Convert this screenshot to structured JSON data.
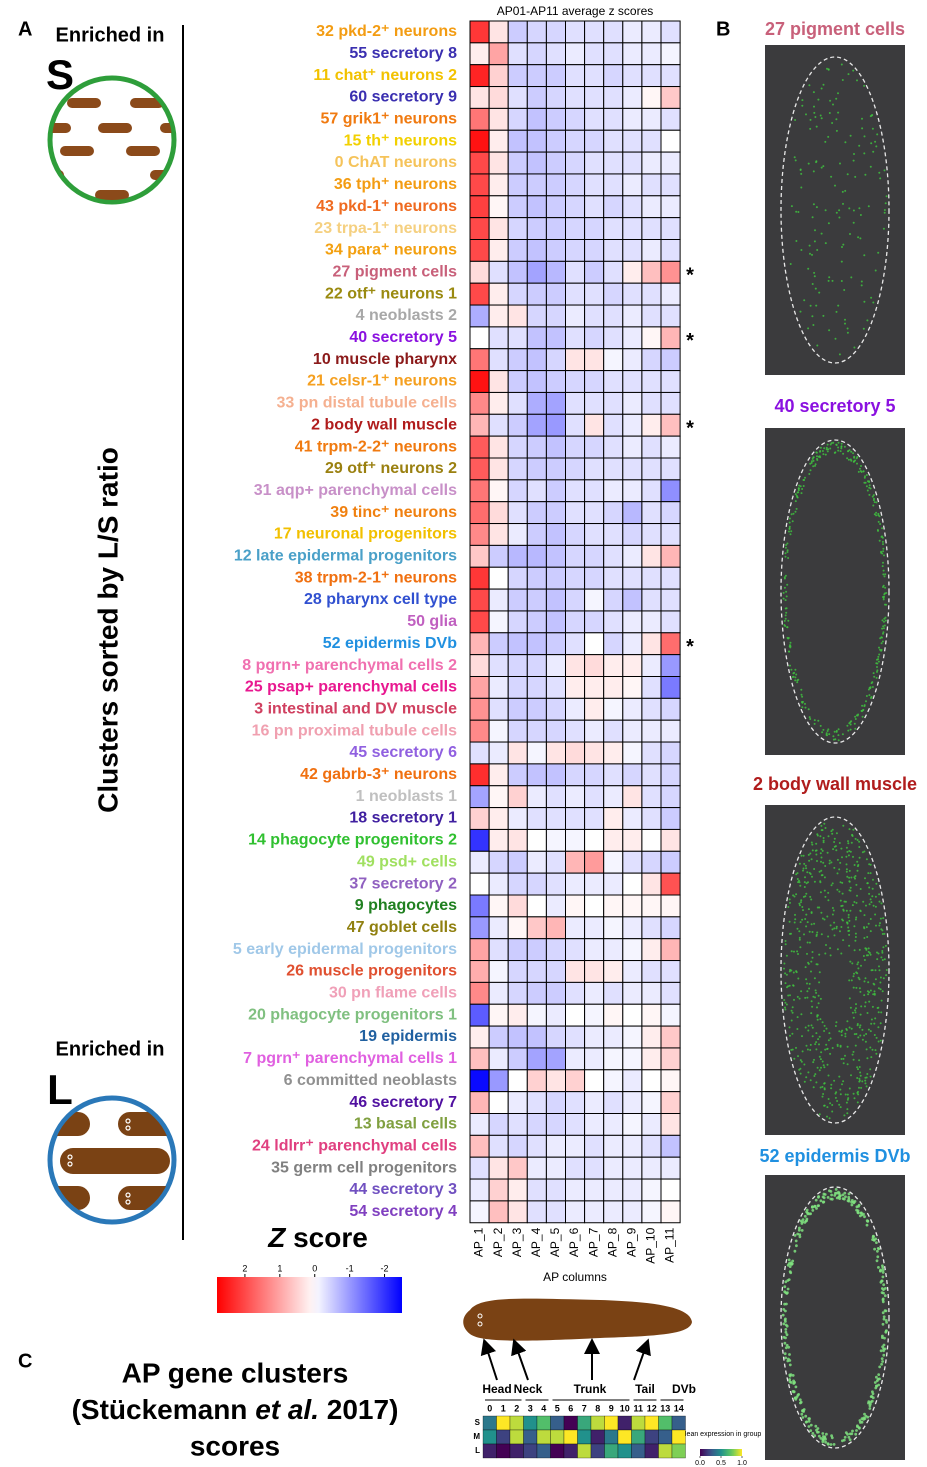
{
  "panel_a": {
    "letter": "A",
    "enriched_label": "Enriched in",
    "s_label": "S",
    "l_label": "L",
    "axis_label": "Clusters sorted by L/S ratio"
  },
  "chart_data": [
    {
      "type": "heatmap",
      "title": "AP01-AP11 average z scores",
      "x_label": "AP columns",
      "columns": [
        "AP_1",
        "AP_2",
        "AP_3",
        "AP_4",
        "AP_5",
        "AP_6",
        "AP_7",
        "AP_8",
        "AP_9",
        "AP_10",
        "AP_11"
      ],
      "categories": [
        "32 pkd-2⁺ neurons",
        "55 secretory 8",
        "11 chat⁺ neurons 2",
        "60 secretory 9",
        "57 grik1⁺ neurons",
        "15 th⁺ neurons",
        "0 ChAT neurons",
        "36 tph⁺ neurons",
        "43 pkd-1⁺ neurons",
        "23 trpa-1⁺ neurons",
        "34 para⁺ neurons",
        "27 pigment cells",
        "22 otf⁺ neurons 1",
        "4 neoblasts 2",
        "40 secretory 5",
        "10 muscle pharynx",
        "21 celsr-1⁺ neurons",
        "33 pn distal tubule cells",
        "2 body wall muscle",
        "41 trpm-2-2⁺ neurons",
        "29 otf⁺ neurons 2",
        "31 aqp+ parenchymal cells",
        "39 tinc⁺ neurons",
        "17 neuronal progenitors",
        "12 late epidermal progenitors",
        "38 trpm-2-1⁺ neurons",
        "28 pharynx cell type",
        "50 glia",
        "52 epidermis DVb",
        "8 pgrn+ parenchymal cells 2",
        "25 psap+ parenchymal cells",
        "3 intestinal and DV muscle",
        "16 pn proximal tubule cells",
        "45 secretory 6",
        "42 gabrb-3⁺ neurons",
        "1 neoblasts 1",
        "18 secretory 1",
        "14 phagocyte progenitors 2",
        "49 psd+ cells",
        "37 secretory 2",
        "9 phagocytes",
        "47 goblet cells",
        "5 early epidermal progenitors",
        "26 muscle progenitors",
        "30 pn flame cells",
        "20 phagocyte progenitors 1",
        "19 epidermis",
        "7 pgrn⁺ parenchymal cells 1",
        "6 committed neoblasts",
        "46 secretory 7",
        "13 basal cells",
        "24 ldlrr⁺ parenchymal cells",
        "35 germ cell progenitors",
        "44 secretory 3",
        "54 secretory 4"
      ],
      "label_colors": [
        "#f39c12",
        "#3a2fb0",
        "#f2c200",
        "#3a2fb0",
        "#f07a10",
        "#f2d000",
        "#f5c35a",
        "#f39c12",
        "#ef6a20",
        "#f5d080",
        "#f3a010",
        "#c8607a",
        "#9a8a10",
        "#a8a8a8",
        "#8a10e0",
        "#8b1a1a",
        "#f5a020",
        "#f5b090",
        "#b01c1c",
        "#f07a10",
        "#9a8010",
        "#c890c8",
        "#f08010",
        "#f2c000",
        "#4aa0c8",
        "#f07010",
        "#3050d0",
        "#c060c0",
        "#2090e0",
        "#f070b0",
        "#e81890",
        "#d04060",
        "#f0a0b0",
        "#9060e0",
        "#f07010",
        "#c0c0c0",
        "#4020a0",
        "#30c030",
        "#a0e060",
        "#9060c0",
        "#208020",
        "#908010",
        "#a0c8e8",
        "#e05030",
        "#f0a0b8",
        "#80c080",
        "#2060a0",
        "#e060e0",
        "#909090",
        "#5010a0",
        "#80a040",
        "#e04080",
        "#808080",
        "#7050c0",
        "#8040c0"
      ],
      "row_notes": [
        null,
        null,
        null,
        null,
        null,
        null,
        null,
        null,
        null,
        null,
        null,
        "*",
        null,
        null,
        "*",
        null,
        null,
        null,
        "*",
        null,
        null,
        null,
        null,
        null,
        null,
        null,
        null,
        null,
        "*",
        null,
        null,
        null,
        null,
        null,
        null,
        null,
        null,
        null,
        null,
        null,
        null,
        null,
        null,
        null,
        null,
        null,
        null,
        null,
        null,
        null,
        null,
        null,
        null,
        null,
        null
      ],
      "values": [
        [
          2.2,
          0.3,
          -0.5,
          -0.4,
          -0.4,
          -0.3,
          -0.3,
          -0.3,
          -0.2,
          -0.2,
          -0.3
        ],
        [
          0.2,
          1.0,
          -0.3,
          -0.4,
          -0.3,
          -0.2,
          -0.3,
          -0.3,
          -0.2,
          -0.2,
          -0.1
        ],
        [
          2.4,
          0.5,
          -0.5,
          -0.5,
          -0.5,
          -0.3,
          -0.3,
          -0.4,
          -0.3,
          -0.3,
          -0.3
        ],
        [
          0.3,
          0.4,
          -0.3,
          -0.5,
          -0.4,
          -0.3,
          -0.3,
          -0.3,
          -0.2,
          0.1,
          0.6
        ],
        [
          1.5,
          0.3,
          -0.4,
          -0.6,
          -0.5,
          -0.4,
          -0.3,
          -0.3,
          -0.2,
          -0.2,
          -0.3
        ],
        [
          2.6,
          0.2,
          -0.6,
          -0.6,
          -0.5,
          -0.4,
          -0.4,
          -0.3,
          -0.3,
          -0.3,
          0.0
        ],
        [
          2.0,
          0.3,
          -0.5,
          -0.6,
          -0.5,
          -0.4,
          -0.3,
          -0.3,
          -0.3,
          -0.2,
          -0.2
        ],
        [
          2.0,
          0.2,
          -0.5,
          -0.5,
          -0.5,
          -0.4,
          -0.3,
          -0.3,
          -0.2,
          -0.3,
          -0.3
        ],
        [
          2.1,
          0.1,
          -0.5,
          -0.6,
          -0.5,
          -0.4,
          -0.3,
          -0.4,
          -0.3,
          -0.2,
          -0.2
        ],
        [
          2.0,
          0.3,
          -0.4,
          -0.5,
          -0.5,
          -0.4,
          -0.4,
          -0.3,
          -0.3,
          -0.3,
          -0.3
        ],
        [
          2.0,
          0.2,
          -0.5,
          -0.6,
          -0.5,
          -0.4,
          -0.4,
          -0.3,
          -0.3,
          -0.2,
          -0.3
        ],
        [
          0.4,
          -0.3,
          -0.6,
          -0.9,
          -0.7,
          -0.3,
          -0.5,
          -0.3,
          0.2,
          0.7,
          1.2
        ],
        [
          2.0,
          0.2,
          -0.4,
          -0.5,
          -0.5,
          -0.3,
          -0.3,
          -0.4,
          -0.3,
          -0.3,
          -0.2
        ],
        [
          -0.8,
          0.2,
          0.3,
          -0.4,
          -0.4,
          -0.2,
          -0.3,
          -0.3,
          -0.2,
          -0.3,
          -0.3
        ],
        [
          0.0,
          -0.3,
          -0.3,
          -0.6,
          -0.6,
          -0.3,
          -0.4,
          -0.3,
          -0.2,
          0.1,
          0.8
        ],
        [
          1.5,
          -0.3,
          -0.5,
          -0.6,
          -0.4,
          0.3,
          0.3,
          -0.1,
          -0.2,
          -0.4,
          -0.5
        ],
        [
          2.6,
          0.3,
          -0.5,
          -0.6,
          -0.5,
          -0.4,
          -0.4,
          -0.3,
          -0.3,
          -0.3,
          -0.3
        ],
        [
          1.3,
          0.2,
          -0.3,
          -0.8,
          -0.9,
          -0.3,
          -0.3,
          -0.3,
          -0.2,
          -0.3,
          -0.3
        ],
        [
          0.8,
          -0.3,
          -0.5,
          -0.9,
          -1.0,
          -0.3,
          0.3,
          -0.3,
          -0.2,
          0.2,
          0.7
        ],
        [
          1.8,
          0.3,
          -0.4,
          -0.5,
          -0.6,
          -0.4,
          -0.4,
          -0.3,
          -0.2,
          -0.3,
          -0.2
        ],
        [
          1.8,
          0.3,
          -0.4,
          -0.5,
          -0.5,
          -0.4,
          -0.3,
          -0.3,
          -0.3,
          -0.3,
          -0.3
        ],
        [
          1.5,
          0.1,
          -0.4,
          -0.3,
          -0.5,
          -0.3,
          -0.3,
          -0.2,
          -0.2,
          -0.3,
          -1.1
        ],
        [
          1.6,
          0.4,
          -0.3,
          -0.5,
          -0.5,
          -0.3,
          -0.3,
          -0.4,
          -0.7,
          -0.3,
          -0.4
        ],
        [
          1.3,
          0.3,
          -0.2,
          -0.5,
          -0.6,
          -0.4,
          -0.3,
          -0.3,
          -0.4,
          -0.3,
          -0.3
        ],
        [
          0.6,
          -0.5,
          -0.7,
          -0.7,
          -0.6,
          -0.4,
          -0.4,
          -0.3,
          -0.2,
          0.3,
          0.8
        ],
        [
          2.2,
          0.0,
          -0.4,
          -0.5,
          -0.5,
          -0.4,
          -0.4,
          -0.3,
          -0.3,
          -0.3,
          -0.3
        ],
        [
          2.0,
          -0.2,
          -0.5,
          -0.5,
          -0.6,
          -0.4,
          -0.1,
          -0.4,
          -0.6,
          -0.3,
          -0.3
        ],
        [
          2.0,
          -0.1,
          -0.4,
          -0.5,
          -0.6,
          -0.4,
          -0.4,
          -0.3,
          -0.2,
          -0.2,
          -0.3
        ],
        [
          0.8,
          -0.5,
          -0.6,
          -0.6,
          -0.5,
          -0.3,
          0.0,
          -0.4,
          -0.2,
          0.3,
          1.6
        ],
        [
          0.4,
          -0.3,
          -0.4,
          -0.4,
          -0.2,
          0.3,
          0.4,
          0.2,
          0.2,
          -0.2,
          -1.0
        ],
        [
          1.0,
          -0.2,
          -0.4,
          -0.4,
          -0.3,
          0.2,
          0.2,
          0.2,
          0.1,
          -0.3,
          -1.3
        ],
        [
          1.2,
          -0.3,
          -0.5,
          -0.5,
          -0.4,
          -0.2,
          0.2,
          -0.1,
          -0.2,
          -0.3,
          -0.4
        ],
        [
          1.3,
          -0.1,
          -0.4,
          -0.4,
          -0.4,
          -0.3,
          -0.2,
          -0.3,
          -0.2,
          -0.2,
          -0.2
        ],
        [
          -0.3,
          -0.2,
          0.3,
          -0.1,
          0.3,
          0.4,
          0.3,
          0.2,
          -0.1,
          -0.3,
          -0.4
        ],
        [
          2.3,
          0.2,
          -0.5,
          -0.6,
          -0.6,
          -0.4,
          -0.4,
          -0.3,
          -0.4,
          -0.3,
          -0.4
        ],
        [
          -0.9,
          0.1,
          0.5,
          -0.2,
          -0.3,
          -0.2,
          -0.3,
          -0.2,
          0.3,
          -0.3,
          -0.4
        ],
        [
          0.5,
          0.2,
          -0.2,
          -0.3,
          -0.3,
          -0.3,
          -0.3,
          0.2,
          -0.2,
          -0.3,
          -0.5
        ],
        [
          -2.0,
          0.2,
          0.3,
          0.0,
          -0.1,
          -0.1,
          0.0,
          0.2,
          0.2,
          0.0,
          0.3
        ],
        [
          -0.2,
          -0.4,
          -0.5,
          -0.2,
          -0.3,
          0.8,
          1.1,
          -0.1,
          -0.3,
          -0.4,
          -0.5
        ],
        [
          0.0,
          -0.2,
          -0.4,
          -0.4,
          -0.3,
          -0.2,
          -0.2,
          -0.2,
          0.0,
          0.3,
          1.9
        ],
        [
          -1.3,
          0.1,
          0.4,
          0.0,
          -0.2,
          0.1,
          0.0,
          0.1,
          0.1,
          0.1,
          0.1
        ],
        [
          -1.0,
          -0.2,
          0.1,
          0.6,
          0.8,
          -0.2,
          -0.2,
          -0.1,
          -0.2,
          -0.3,
          -0.4
        ],
        [
          1.0,
          -0.3,
          -0.5,
          -0.5,
          -0.4,
          -0.3,
          -0.2,
          -0.2,
          -0.1,
          0.2,
          0.8
        ],
        [
          0.9,
          -0.1,
          -0.4,
          -0.4,
          -0.4,
          0.3,
          0.3,
          0.2,
          -0.2,
          -0.3,
          -0.3
        ],
        [
          1.3,
          -0.2,
          -0.4,
          -0.5,
          -0.5,
          -0.3,
          -0.2,
          -0.3,
          -0.2,
          -0.2,
          -0.3
        ],
        [
          -1.6,
          0.1,
          0.2,
          -0.1,
          -0.2,
          0.0,
          -0.1,
          0.1,
          0.0,
          0.1,
          -0.1
        ],
        [
          0.2,
          -0.5,
          -0.6,
          -0.6,
          -0.4,
          -0.3,
          -0.2,
          -0.2,
          -0.1,
          0.2,
          0.6
        ],
        [
          0.7,
          -0.2,
          -0.5,
          -0.9,
          -0.9,
          -0.2,
          -0.2,
          -0.1,
          -0.1,
          0.2,
          0.5
        ],
        [
          -2.4,
          -1.0,
          0.0,
          0.5,
          0.3,
          0.5,
          0.0,
          -0.1,
          -0.2,
          0.0,
          0.1
        ],
        [
          0.8,
          0.0,
          -0.2,
          -0.3,
          -0.4,
          -0.3,
          -0.2,
          -0.3,
          -0.2,
          -0.1,
          0.5
        ],
        [
          -0.2,
          -0.4,
          -0.3,
          -0.4,
          -0.4,
          -0.3,
          -0.2,
          -0.2,
          -0.1,
          -0.2,
          0.3
        ],
        [
          0.7,
          -0.3,
          -0.4,
          -0.3,
          -0.2,
          -0.2,
          -0.3,
          -0.2,
          -0.2,
          -0.3,
          -0.6
        ],
        [
          -0.3,
          0.3,
          0.6,
          -0.2,
          -0.2,
          -0.3,
          -0.3,
          -0.2,
          -0.2,
          -0.2,
          -0.2
        ],
        [
          -0.2,
          0.5,
          0.2,
          -0.3,
          -0.3,
          -0.2,
          -0.2,
          -0.2,
          -0.2,
          -0.1,
          0.0
        ],
        [
          -0.1,
          0.7,
          0.3,
          -0.3,
          -0.3,
          -0.2,
          -0.2,
          -0.2,
          -0.2,
          -0.1,
          0.1
        ]
      ],
      "zlim": [
        -2.5,
        2.8
      ],
      "color_low": "#0000ff",
      "color_mid": "#ffffff",
      "color_high": "#ff0000",
      "colorbar": {
        "title_var": "Z",
        "title_text": "score",
        "ticks": [
          2,
          1,
          0,
          -1,
          -2
        ]
      }
    },
    {
      "type": "heatmap",
      "categories": [
        "S",
        "M",
        "L"
      ],
      "columns": [
        0,
        1,
        2,
        3,
        4,
        5,
        6,
        7,
        8,
        9,
        10,
        11,
        12,
        13,
        14
      ],
      "group_labels": [
        "Head",
        "Neck",
        "Trunk",
        "Tail",
        "DVb"
      ],
      "values": [
        [
          0.4,
          1.0,
          0.9,
          0.5,
          0.7,
          0.3,
          0.0,
          0.6,
          0.9,
          1.0,
          0.1,
          0.9,
          1.0,
          0.7,
          0.3
        ],
        [
          0.5,
          0.2,
          0.9,
          0.3,
          0.9,
          0.9,
          1.0,
          0.5,
          0.1,
          0.4,
          1.0,
          0.6,
          0.2,
          0.3,
          1.0
        ],
        [
          0.1,
          0.0,
          0.1,
          0.2,
          0.3,
          0.0,
          0.1,
          0.9,
          0.2,
          0.6,
          0.5,
          0.3,
          0.1,
          0.9,
          0.8
        ]
      ],
      "zlim": [
        0,
        1
      ],
      "colormap": [
        "#440154",
        "#3b528b",
        "#21918c",
        "#5ec962",
        "#fde725"
      ],
      "colorbar": {
        "title": "Mean expression in group",
        "ticks": [
          {
            "value": 0,
            "label": "0.0"
          },
          {
            "value": 0.5,
            "label": "0.5"
          },
          {
            "value": 1,
            "label": "1.0"
          }
        ]
      }
    }
  ],
  "panel_b": {
    "letter": "B",
    "images": [
      {
        "title": "27 pigment cells",
        "color": "#c8607a"
      },
      {
        "title": "40 secretory 5",
        "color": "#8a10e0"
      },
      {
        "title": "2 body wall muscle",
        "color": "#b01c1c"
      },
      {
        "title": "52 epidermis DVb",
        "color": "#2090e0"
      }
    ]
  },
  "panel_c": {
    "letter": "C",
    "title_line1": "AP gene clusters",
    "title_line2a": "(Stückemann",
    "title_line2b": "et al.",
    "title_line2c": "2017)",
    "title_line3": "scores"
  }
}
